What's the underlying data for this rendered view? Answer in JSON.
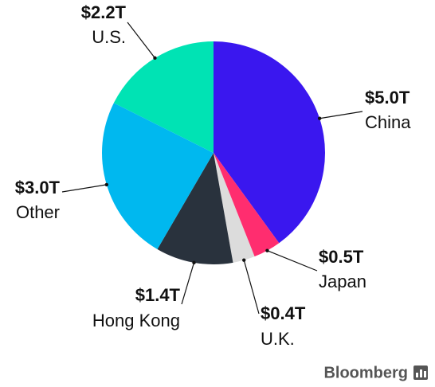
{
  "chart_data": {
    "type": "pie",
    "categories": [
      "China",
      "Japan",
      "U.K.",
      "Hong Kong",
      "Other",
      "U.S."
    ],
    "values": [
      5.0,
      0.5,
      0.4,
      1.4,
      3.0,
      2.2
    ],
    "value_labels": [
      "$5.0T",
      "$0.5T",
      "$0.4T",
      "$1.4T",
      "$3.0T",
      "$2.2T"
    ],
    "colors": [
      "#3a17ef",
      "#ff2d6f",
      "#dcdcdc",
      "#29323d",
      "#00b8ef",
      "#00e3b4"
    ],
    "source": "Bloomberg"
  }
}
